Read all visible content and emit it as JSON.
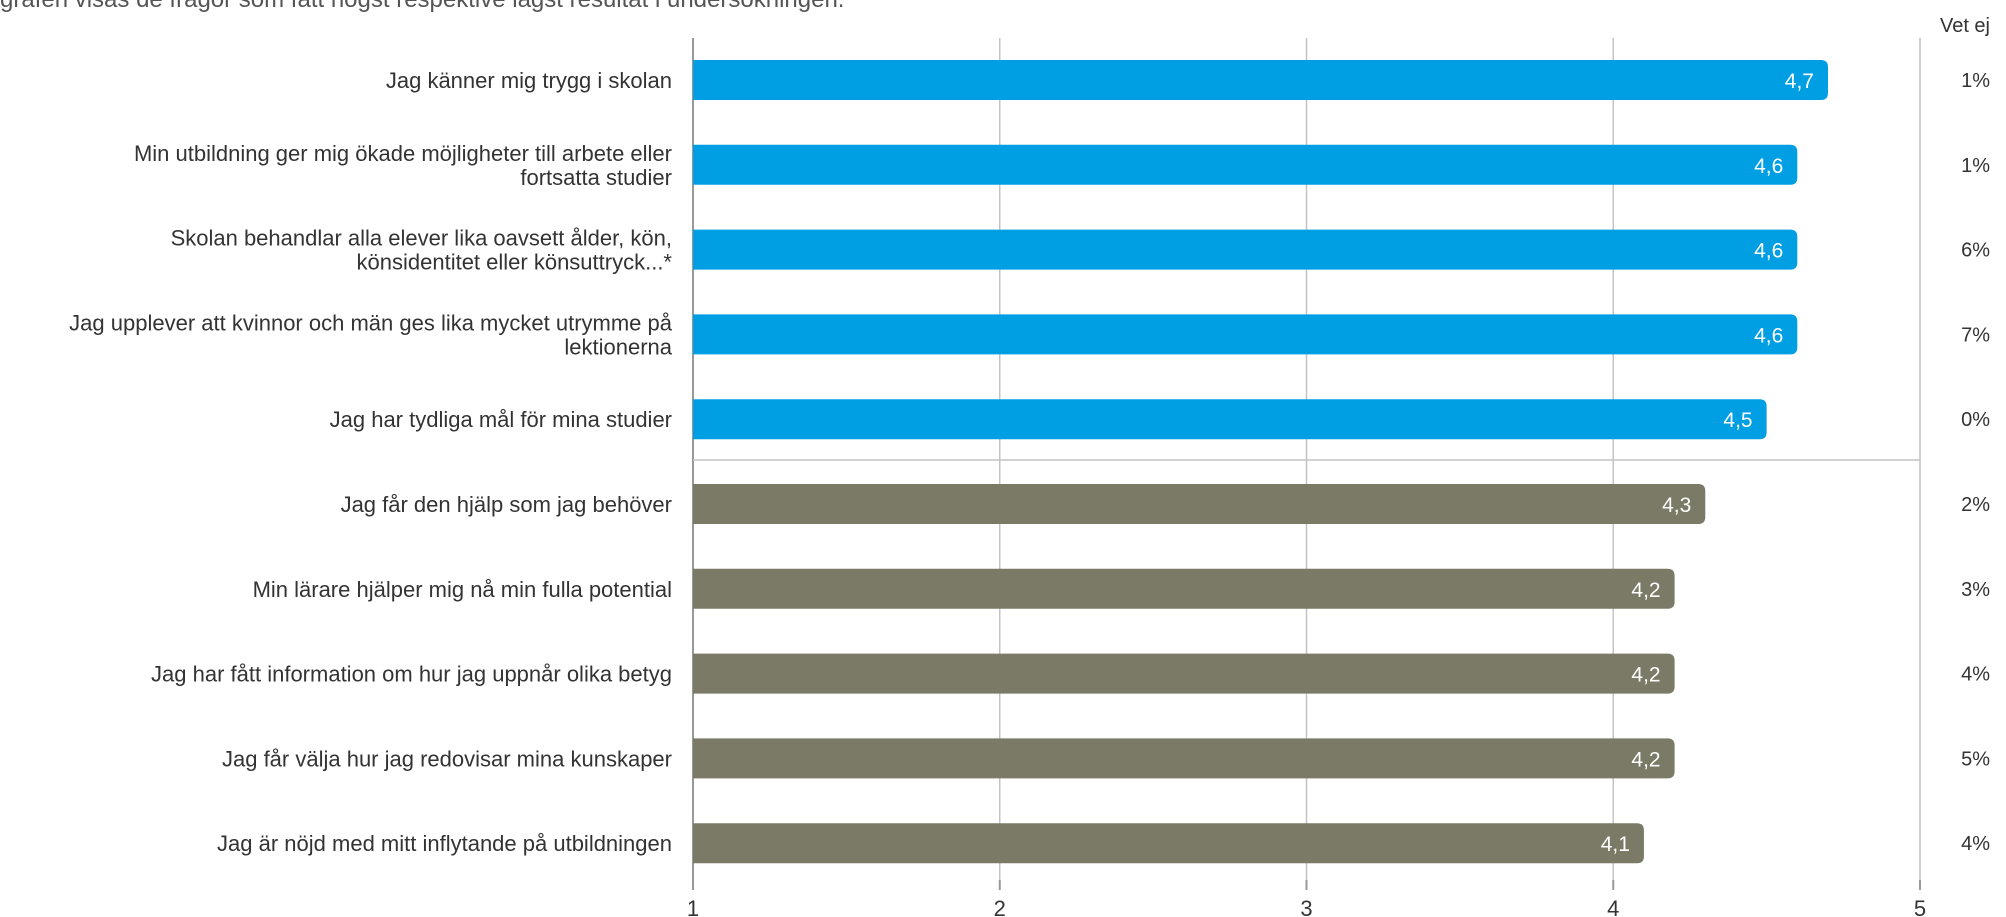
{
  "intro_text": "grafen visas de frågor som fått högst respektive lägst resultat i undersökningen.",
  "chart_data": {
    "type": "bar",
    "orientation": "horizontal",
    "xlim": [
      1,
      5
    ],
    "xticks": [
      "1",
      "2",
      "3",
      "4",
      "5"
    ],
    "grid": true,
    "vetej_header": "Vet ej",
    "colors": {
      "top": "#009fe3",
      "bottom": "#7a7a67"
    },
    "categories": [
      "Jag känner mig trygg i skolan",
      "Min utbildning ger mig ökade möjligheter till arbete eller fortsatta studier",
      "Skolan behandlar alla elever lika oavsett ålder, kön, könsidentitet eller könsuttryck...*",
      "Jag upplever att kvinnor och män ges lika mycket utrymme på lektionerna",
      "Jag har tydliga mål för mina studier",
      "Jag får den hjälp som jag behöver",
      "Min lärare hjälper mig nå min fulla potential",
      "Jag har fått information om hur jag uppnår olika betyg",
      "Jag får välja hur jag redovisar mina kunskaper",
      "Jag är nöjd med mitt inflytande på utbildningen"
    ],
    "label_lines": [
      [
        "Jag känner mig trygg i skolan"
      ],
      [
        "Min utbildning ger mig ökade möjligheter till arbete eller",
        "fortsatta studier"
      ],
      [
        "Skolan behandlar alla elever lika oavsett ålder, kön,",
        "könsidentitet eller könsuttryck...*"
      ],
      [
        "Jag upplever att kvinnor och män ges lika mycket utrymme på",
        "lektionerna"
      ],
      [
        "Jag har tydliga mål för mina studier"
      ],
      [
        "Jag får den hjälp som jag behöver"
      ],
      [
        "Min lärare hjälper mig nå min fulla potential"
      ],
      [
        "Jag har fått information om hur jag uppnår olika betyg"
      ],
      [
        "Jag får välja hur jag redovisar mina kunskaper"
      ],
      [
        "Jag är nöjd med mitt inflytande på utbildningen"
      ]
    ],
    "values": [
      4.7,
      4.6,
      4.6,
      4.6,
      4.5,
      4.3,
      4.2,
      4.2,
      4.2,
      4.1
    ],
    "value_labels": [
      "4,7",
      "4,6",
      "4,6",
      "4,6",
      "4,5",
      "4,3",
      "4,2",
      "4,2",
      "4,2",
      "4,1"
    ],
    "groups": [
      "top",
      "top",
      "top",
      "top",
      "top",
      "bottom",
      "bottom",
      "bottom",
      "bottom",
      "bottom"
    ],
    "vet_ej": [
      "1%",
      "1%",
      "6%",
      "7%",
      "0%",
      "2%",
      "3%",
      "4%",
      "5%",
      "4%"
    ]
  }
}
